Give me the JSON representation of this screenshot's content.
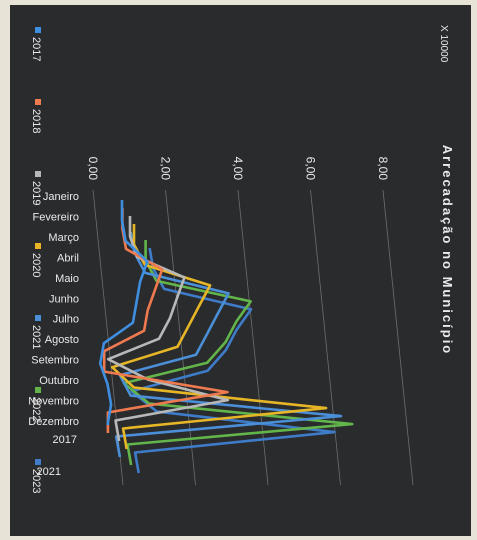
{
  "chart_data": {
    "type": "line",
    "title": "Arrecadação no Município",
    "scale_label": "X 10000",
    "categories": [
      "Janeiro",
      "Fevereiro",
      "Março",
      "Abril",
      "Maio",
      "Junho",
      "Julho",
      "Agosto",
      "Setembro",
      "Outubro",
      "Novembro",
      "Dezembro"
    ],
    "y_ticks": [
      "0,00",
      "2,00",
      "4,00",
      "6,00",
      "8,00"
    ],
    "ylim": [
      0,
      8
    ],
    "depth_ticks": [
      "2017",
      "2021"
    ],
    "legend_position": "left",
    "orientation": "rotated 90° clockwise (3D line chart)",
    "series": [
      {
        "name": "2017",
        "color": "#3f8fe0",
        "values": [
          0.8,
          0.8,
          0.9,
          1.5,
          1.3,
          1.2,
          1.1,
          0.3,
          0.2,
          0.4,
          0.5,
          0.4
        ]
      },
      {
        "name": "2018",
        "color": "#f07a50",
        "values": [
          0.7,
          0.7,
          0.8,
          1.8,
          1.6,
          1.4,
          1.3,
          0.2,
          0.2,
          3.6,
          0.3,
          0.3
        ]
      },
      {
        "name": "2019",
        "color": "#b8b8b8",
        "values": [
          0.8,
          0.8,
          1.0,
          2.3,
          2.1,
          1.9,
          1.6,
          0.2,
          1.3,
          3.5,
          0.4,
          0.5
        ]
      },
      {
        "name": "2020",
        "color": "#e7b627",
        "values": [
          0.8,
          0.8,
          1.1,
          2.9,
          2.6,
          2.3,
          2.0,
          0.2,
          0.8,
          6.1,
          0.5,
          0.6
        ]
      },
      {
        "name": "2021",
        "color": "#4a8fd8",
        "values": [
          0.6,
          0.7,
          1.0,
          3.3,
          3.0,
          2.7,
          2.4,
          0.3,
          0.6,
          6.4,
          0.2,
          0.3
        ]
      },
      {
        "name": "2022",
        "color": "#62b54a",
        "values": [
          0.9,
          0.9,
          1.2,
          3.8,
          3.4,
          3.1,
          2.6,
          0.3,
          1.0,
          6.6,
          0.4,
          0.5
        ]
      },
      {
        "name": "2023",
        "color": "#3e7cc9",
        "values": [
          0.9,
          1.0,
          1.3,
          3.7,
          3.3,
          3.0,
          2.5,
          0.4,
          1.1,
          6.0,
          0.5,
          0.6
        ]
      }
    ]
  }
}
